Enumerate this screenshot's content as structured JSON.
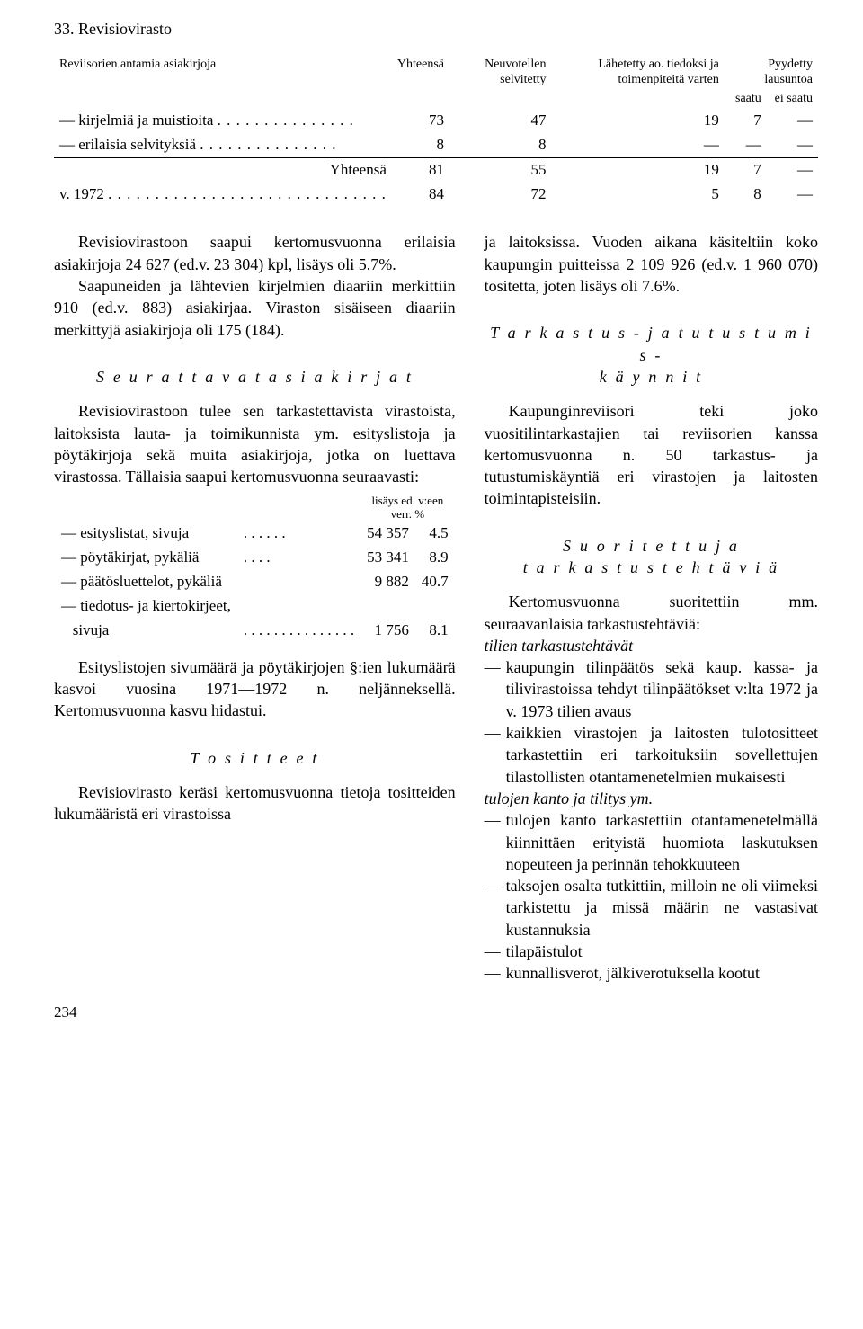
{
  "header": {
    "section": "33. Revisiovirasto"
  },
  "table": {
    "col_label": "Reviisorien antamia asiakirjoja",
    "headers": {
      "c1": "Yhteensä",
      "c2": "Neuvotellen selvitetty",
      "c3": "Lähetetty ao. tiedoksi ja toimenpiteitä varten",
      "c4_top": "Pyydetty lausuntoa",
      "c4": "saatu",
      "c5": "ei saatu"
    },
    "rows": [
      {
        "label": "— kirjelmiä ja muistioita",
        "v": [
          "73",
          "47",
          "19",
          "7",
          "—"
        ]
      },
      {
        "label": "— erilaisia selvityksiä",
        "v": [
          "8",
          "8",
          "—",
          "—",
          "—"
        ]
      }
    ],
    "total": {
      "label": "Yhteensä",
      "v": [
        "81",
        "55",
        "19",
        "7",
        "—"
      ]
    },
    "compare": {
      "label": "v. 1972",
      "v": [
        "84",
        "72",
        "5",
        "8",
        "—"
      ]
    }
  },
  "left": {
    "p1": "Revisiovirastoon saapui kertomusvuonna erilaisia asiakirjoja 24 627 (ed.v. 23 304) kpl, lisäys oli 5.7%.",
    "p2": "Saapuneiden ja lähtevien kirjelmien diaariin merkittiin 910 (ed.v. 883) asiakirjaa. Viraston sisäiseen diaariin merkittyjä asiakirjoja oli 175 (184).",
    "h1": "S e u r a t t a v a t  a s i a k i r j a t",
    "p3": "Revisiovirastoon tulee sen tarkastettavista virastoista, laitoksista lauta- ja toimikunnista ym. esityslistoja ja pöytäkirjoja sekä muita asiakirjoja, jotka on luettava virastossa. Tällaisia saapui kertomusvuonna seuraavasti:",
    "inner_header": "lisäys ed. v:een verr. %",
    "inner_rows": [
      {
        "label": "— esityslistat, sivuja",
        "dots": ". . . . . .",
        "n": "54 357",
        "p": "4.5"
      },
      {
        "label": "— pöytäkirjat, pykäliä",
        "dots": ". . . .",
        "n": "53 341",
        "p": "8.9"
      },
      {
        "label": "— päätösluettelot, pykäliä",
        "dots": "",
        "n": "9 882",
        "p": "40.7"
      },
      {
        "label": "— tiedotus- ja kiertokirjeet,",
        "dots": "",
        "n": "",
        "p": ""
      },
      {
        "label": "   sivuja",
        "dots": ". . . . . . . . . . . . . . .",
        "n": "1 756",
        "p": "8.1"
      }
    ],
    "p4": "Esityslistojen sivumäärä ja pöytäkirjojen §:ien lukumäärä kasvoi vuosina 1971—1972 n. neljänneksellä. Kertomusvuonna kasvu hidastui.",
    "h2": "T o s i t t e e t",
    "p5": "Revisiovirasto keräsi kertomusvuonna tietoja tositteiden lukumääristä eri virastoissa"
  },
  "right": {
    "p1": "ja laitoksissa. Vuoden aikana käsiteltiin koko kaupungin puitteissa 2 109 926 (ed.v. 1 960 070) tositetta, joten lisäys oli 7.6%.",
    "h1a": "T a r k a s t u s -  j a  t u t u s t u m i s -",
    "h1b": "k ä y n n i t",
    "p2": "Kaupunginreviisori teki joko vuositilintarkastajien tai reviisorien kanssa kertomusvuonna n. 50 tarkastus- ja tutustumiskäyntiä eri virastojen ja laitosten toimintapisteisiin.",
    "h2a": "S u o r i t e t t u j a",
    "h2b": "t a r k a s t u s t e h t ä v i ä",
    "p3": "Kertomusvuonna suoritettiin mm. seuraavanlaisia tarkastustehtäviä:",
    "sub1": "tilien tarkastustehtävät",
    "b1": "kaupungin tilinpäätös sekä kaup. kassa- ja tilivirastoissa tehdyt tilinpäätökset v:lta 1972 ja v. 1973 tilien avaus",
    "b2": "kaikkien virastojen ja laitosten tulotositteet tarkastettiin eri tarkoituksiin sovellettujen tilastollisten otantamenetelmien mukaisesti",
    "sub2": "tulojen kanto ja tilitys ym.",
    "b3": "tulojen kanto tarkastettiin otantamenetelmällä kiinnittäen erityistä huomiota laskutuksen nopeuteen ja perinnän tehokkuuteen",
    "b4": "taksojen osalta tutkittiin, milloin ne oli viimeksi tarkistettu ja missä määrin ne vastasivat kustannuksia",
    "b5": "tilapäistulot",
    "b6": "kunnallisverot, jälkiverotuksella kootut"
  },
  "page_number": "234"
}
